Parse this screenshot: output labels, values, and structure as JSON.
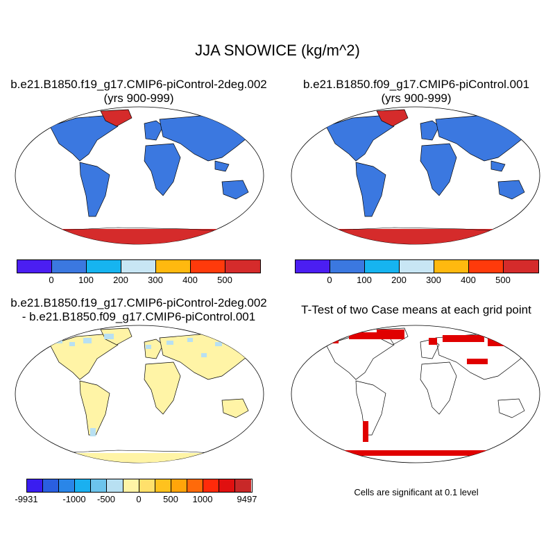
{
  "figure_title": "JJA SNOWICE (kg/m^2)",
  "panels": [
    {
      "id": "case1",
      "title_line1": "b.e21.B1850.f19_g17.CMIP6-piControl-2deg.002",
      "title_line2": "(yrs 900-999)"
    },
    {
      "id": "case2",
      "title_line1": "b.e21.B1850.f09_g17.CMIP6-piControl.001",
      "title_line2": "(yrs 900-999)"
    },
    {
      "id": "diff",
      "title_line1": "b.e21.B1850.f19_g17.CMIP6-piControl-2deg.002",
      "title_line2": "- b.e21.B1850.f09_g17.CMIP6-piControl.001"
    },
    {
      "id": "ttest",
      "title_line1": "T-Test of two Case means at each grid point",
      "title_line2": ""
    }
  ],
  "colorbar_abs": {
    "colors": [
      "#4b1ef2",
      "#3b78e0",
      "#16b4f0",
      "#c8e6f4",
      "#ffb90f",
      "#ff3a0b",
      "#d52b2b"
    ],
    "labels": [
      "0",
      "100",
      "200",
      "300",
      "400",
      "500"
    ]
  },
  "colorbar_diff": {
    "colors": [
      "#3a1df0",
      "#2a5fe0",
      "#2a86e8",
      "#1ab0f0",
      "#6cc4ec",
      "#b8e0f2",
      "#fff4a6",
      "#ffe06b",
      "#ffc21e",
      "#ffa50a",
      "#ff6a0a",
      "#ff2a0a",
      "#e01010",
      "#c82828"
    ],
    "labels": [
      "-9931",
      "-1000",
      "-500",
      "0",
      "500",
      "1000",
      "9497"
    ]
  },
  "significance_note": "Cells are significant at 0.1 level",
  "colors": {
    "ocean": "#ffffff",
    "land_low": "#3b78e0",
    "ice_high": "#d52b2b",
    "diff_land": "#fff4a6",
    "diff_neg": "#b8e0f2",
    "sig": "#e00000"
  }
}
